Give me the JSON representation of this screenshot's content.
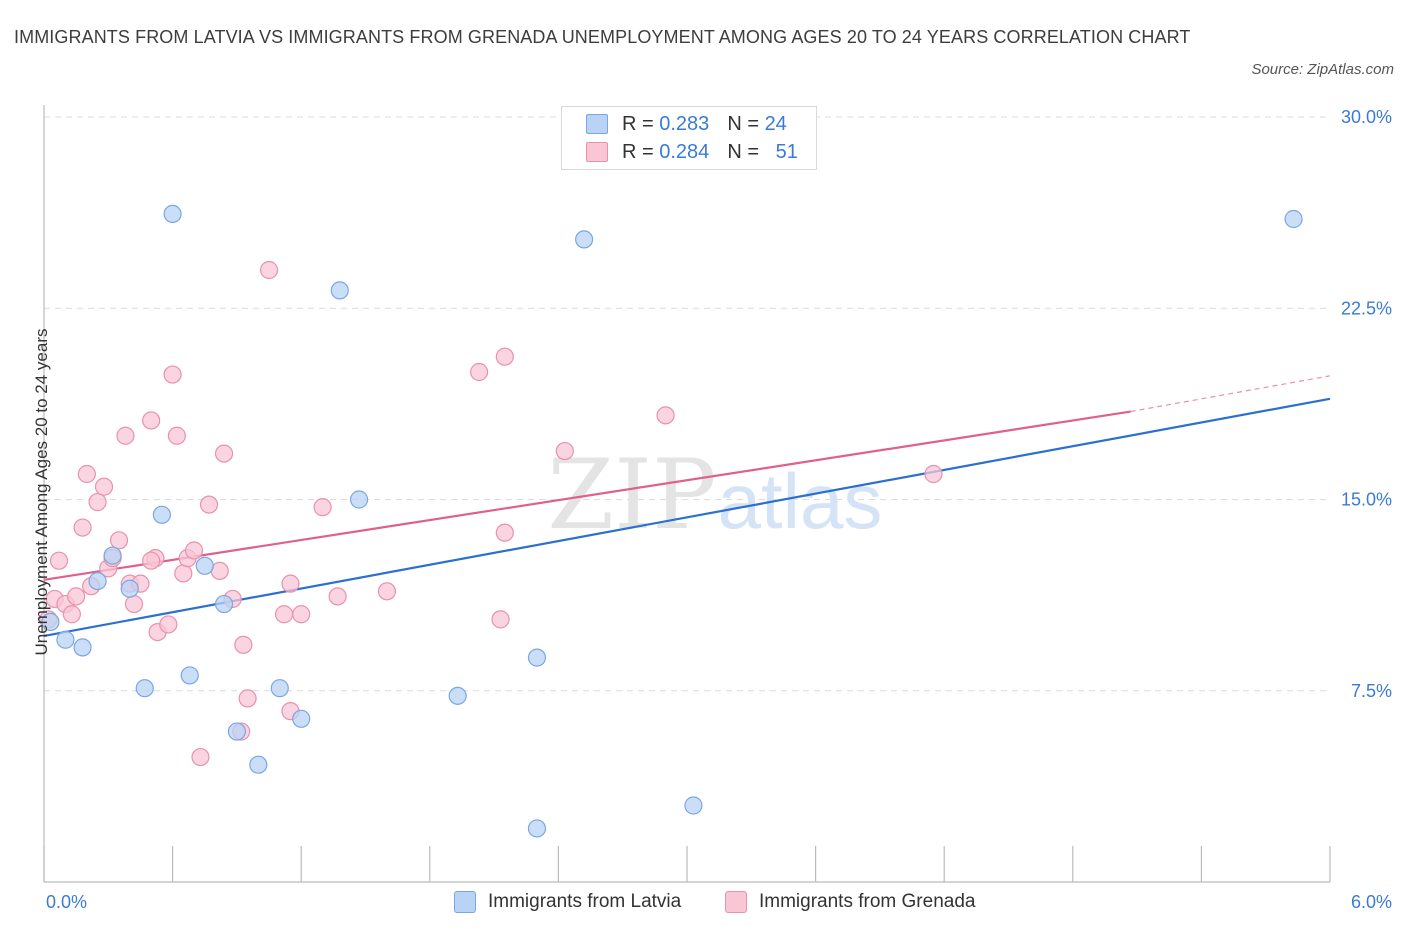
{
  "title": "IMMIGRANTS FROM LATVIA VS IMMIGRANTS FROM GRENADA UNEMPLOYMENT AMONG AGES 20 TO 24 YEARS CORRELATION CHART",
  "source": "Source: ZipAtlas.com",
  "watermark": {
    "zip": "ZIP",
    "atlas": "atlas"
  },
  "legend": {
    "latvia": {
      "r_label": "R =",
      "r_value": "0.283",
      "n_label": "N =",
      "n_value": "24"
    },
    "grenada": {
      "r_label": "R =",
      "r_value": "0.284",
      "n_label": "N =",
      "n_value": "51"
    }
  },
  "colors": {
    "latvia_fill": "#b9d3f5",
    "latvia_stroke": "#7aa7e0",
    "latvia_line": "#2b6fd0",
    "grenada_fill": "#f8c6d5",
    "grenada_stroke": "#e892ad",
    "grenada_line": "#e0608a",
    "axis_label": "#3a7bd5",
    "grid": "#dcdcdc"
  },
  "chart_data": {
    "type": "scatter",
    "title": "IMMIGRANTS FROM LATVIA VS IMMIGRANTS FROM GRENADA UNEMPLOYMENT AMONG AGES 20 TO 24 YEARS CORRELATION CHART",
    "xlabel": "",
    "ylabel": "Unemployment Among Ages 20 to 24 years",
    "xlim": [
      0,
      6
    ],
    "ylim": [
      0,
      30
    ],
    "x_tick_labels": [
      "0.0%",
      "6.0%"
    ],
    "y_ticks": [
      7.5,
      15.0,
      22.5,
      30.0
    ],
    "y_tick_labels": [
      "7.5%",
      "15.0%",
      "22.5%",
      "30.0%"
    ],
    "grid": "horizontal dashed",
    "legend_position": "top-center",
    "series": [
      {
        "name": "Immigrants from Latvia",
        "points": [
          [
            0.03,
            10.2
          ],
          [
            0.1,
            9.5
          ],
          [
            0.18,
            9.2
          ],
          [
            0.25,
            11.8
          ],
          [
            0.32,
            12.8
          ],
          [
            0.4,
            11.5
          ],
          [
            0.47,
            7.6
          ],
          [
            0.55,
            14.4
          ],
          [
            0.6,
            26.2
          ],
          [
            0.68,
            8.1
          ],
          [
            0.75,
            12.4
          ],
          [
            0.84,
            10.9
          ],
          [
            0.9,
            5.9
          ],
          [
            1.0,
            4.6
          ],
          [
            1.1,
            7.6
          ],
          [
            1.2,
            6.4
          ],
          [
            1.38,
            23.2
          ],
          [
            1.47,
            15.0
          ],
          [
            1.93,
            7.3
          ],
          [
            2.3,
            2.1
          ],
          [
            2.3,
            8.8
          ],
          [
            2.52,
            25.2
          ],
          [
            3.03,
            3.0
          ],
          [
            5.83,
            26.0
          ]
        ],
        "trend": {
          "x": [
            0.0,
            6.0
          ],
          "y": [
            9.65,
            18.95
          ]
        }
      },
      {
        "name": "Immigrants from Grenada",
        "points": [
          [
            0.02,
            10.3
          ],
          [
            0.05,
            11.1
          ],
          [
            0.07,
            12.6
          ],
          [
            0.1,
            10.9
          ],
          [
            0.13,
            10.5
          ],
          [
            0.15,
            11.2
          ],
          [
            0.18,
            13.9
          ],
          [
            0.2,
            16.0
          ],
          [
            0.22,
            11.6
          ],
          [
            0.25,
            14.9
          ],
          [
            0.28,
            15.5
          ],
          [
            0.3,
            12.3
          ],
          [
            0.32,
            12.7
          ],
          [
            0.35,
            13.4
          ],
          [
            0.38,
            17.5
          ],
          [
            0.4,
            11.7
          ],
          [
            0.42,
            10.9
          ],
          [
            0.45,
            11.7
          ],
          [
            0.5,
            18.1
          ],
          [
            0.52,
            12.7
          ],
          [
            0.53,
            9.8
          ],
          [
            0.58,
            10.1
          ],
          [
            0.6,
            19.9
          ],
          [
            0.62,
            17.5
          ],
          [
            0.65,
            12.1
          ],
          [
            0.67,
            12.7
          ],
          [
            0.7,
            13.0
          ],
          [
            0.77,
            14.8
          ],
          [
            0.82,
            12.2
          ],
          [
            0.84,
            16.8
          ],
          [
            0.88,
            11.1
          ],
          [
            0.92,
            5.9
          ],
          [
            0.93,
            9.3
          ],
          [
            0.95,
            7.2
          ],
          [
            1.05,
            24.0
          ],
          [
            1.12,
            10.5
          ],
          [
            1.15,
            11.7
          ],
          [
            1.15,
            6.7
          ],
          [
            1.2,
            10.5
          ],
          [
            1.3,
            14.7
          ],
          [
            1.37,
            11.2
          ],
          [
            1.6,
            11.4
          ],
          [
            2.03,
            20.0
          ],
          [
            2.13,
            10.3
          ],
          [
            2.15,
            20.6
          ],
          [
            2.15,
            13.7
          ],
          [
            2.43,
            16.9
          ],
          [
            2.9,
            18.3
          ],
          [
            4.15,
            16.0
          ],
          [
            0.73,
            4.9
          ],
          [
            0.5,
            12.6
          ]
        ],
        "trend": {
          "x": [
            0.0,
            5.07
          ],
          "y": [
            11.85,
            18.45
          ]
        },
        "trend_dashed": {
          "x": [
            5.07,
            6.0
          ],
          "y": [
            18.45,
            19.85
          ]
        }
      }
    ]
  },
  "bottom_legend": {
    "latvia": "Immigrants from Latvia",
    "grenada": "Immigrants from Grenada"
  }
}
